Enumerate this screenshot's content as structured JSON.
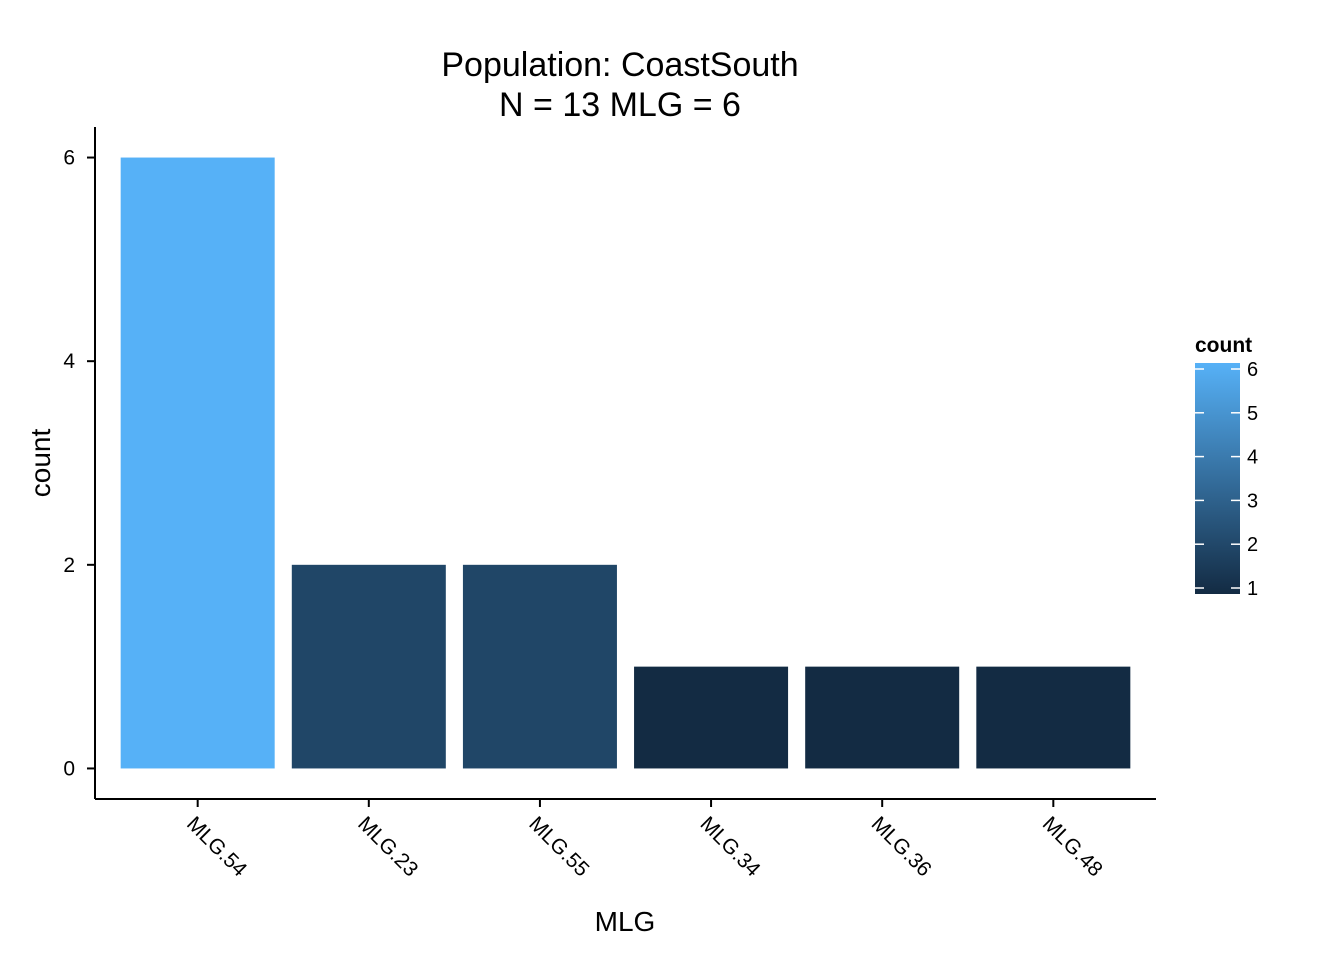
{
  "chart_data": {
    "type": "bar",
    "title": [
      "Population: CoastSouth",
      "N = 13 MLG = 6"
    ],
    "xlabel": "MLG",
    "ylabel": "count",
    "categories": [
      "MLG.54",
      "MLG.23",
      "MLG.55",
      "MLG.34",
      "MLG.36",
      "MLG.48"
    ],
    "values": [
      6,
      2,
      2,
      1,
      1,
      1
    ],
    "ylim": [
      -0.3,
      6.3
    ],
    "yticks": [
      0,
      2,
      4,
      6
    ],
    "grid": false,
    "fill_scale": {
      "variable": "count",
      "low_value": 1,
      "high_value": 6,
      "low_color": "#132B43",
      "high_color": "#56B1F7"
    },
    "legend": {
      "title": "count",
      "position": "right",
      "ticks": [
        1,
        2,
        3,
        4,
        5,
        6
      ]
    }
  }
}
